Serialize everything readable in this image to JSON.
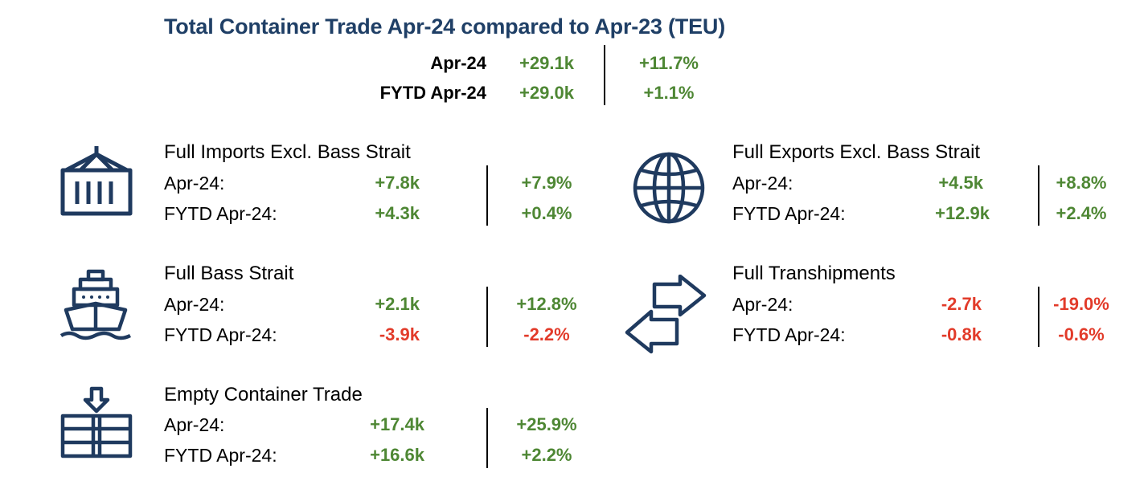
{
  "title": "Total Container Trade Apr-24 compared to Apr-23 (TEU)",
  "summary": {
    "rows": [
      {
        "label": "Apr-24",
        "abs": "+29.1k",
        "pct": "+11.7%"
      },
      {
        "label": "FYTD Apr-24",
        "abs": "+29.0k",
        "pct": "+1.1%"
      }
    ]
  },
  "sections": {
    "imports": {
      "title": "Full Imports Excl. Bass Strait",
      "icon": "container-icon",
      "rows": [
        {
          "label": "Apr-24:",
          "abs": "+7.8k",
          "pct": "+7.9%"
        },
        {
          "label": "FYTD Apr-24:",
          "abs": "+4.3k",
          "pct": "+0.4%"
        }
      ]
    },
    "exports": {
      "title": "Full Exports Excl. Bass Strait",
      "icon": "globe-icon",
      "rows": [
        {
          "label": "Apr-24:",
          "abs": "+4.5k",
          "pct": "+8.8%"
        },
        {
          "label": "FYTD Apr-24:",
          "abs": "+12.9k",
          "pct": "+2.4%"
        }
      ]
    },
    "bass": {
      "title": "Full Bass Strait",
      "icon": "ship-icon",
      "rows": [
        {
          "label": "Apr-24:",
          "abs": "+2.1k",
          "pct": "+12.8%"
        },
        {
          "label": "FYTD Apr-24:",
          "abs": "-3.9k",
          "pct": "-2.2%"
        }
      ]
    },
    "tranship": {
      "title": "Full Transhipments",
      "icon": "transfer-arrows-icon",
      "rows": [
        {
          "label": "Apr-24:",
          "abs": "-2.7k",
          "pct": "-19.0%"
        },
        {
          "label": "FYTD Apr-24:",
          "abs": "-0.8k",
          "pct": "-0.6%"
        }
      ]
    },
    "empty": {
      "title": "Empty Container Trade",
      "icon": "stacked-containers-icon",
      "rows": [
        {
          "label": "Apr-24:",
          "abs": "+17.4k",
          "pct": "+25.9%"
        },
        {
          "label": "FYTD Apr-24:",
          "abs": "+16.6k",
          "pct": "+2.2%"
        }
      ]
    }
  },
  "colors": {
    "title": "#1f3f66",
    "icon": "#1f3a5f",
    "positive": "#4e8734",
    "negative": "#e23b2a"
  }
}
